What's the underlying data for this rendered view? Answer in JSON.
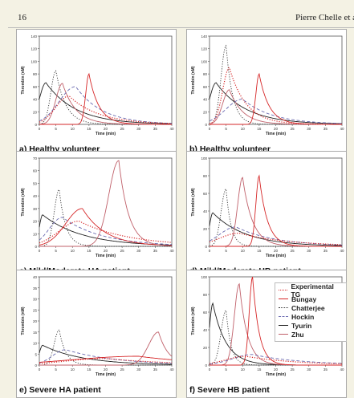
{
  "page": {
    "number": "16",
    "running_head": "Pierre Chelle et al"
  },
  "legend": [
    {
      "label": "Experimental TG",
      "color": "#d62728",
      "style": "dotted"
    },
    {
      "label": "Bungay",
      "color": "#d62728",
      "style": "solid"
    },
    {
      "label": "Chatterjee",
      "color": "#333333",
      "style": "dotted"
    },
    {
      "label": "Hockin",
      "color": "#6a6ab0",
      "style": "dashed"
    },
    {
      "label": "Tyurin",
      "color": "#222222",
      "style": "solid"
    },
    {
      "label": "Zhu",
      "color": "#c0606a",
      "style": "solid"
    }
  ],
  "chart_data": [
    {
      "panel": "a",
      "type": "line",
      "caption": "a) Healthy volunteer",
      "xlabel": "Time (min)",
      "ylabel": "Thrombin (nM)",
      "xlim": [
        0,
        40
      ],
      "ylim": [
        0,
        140
      ],
      "xticks": [
        0,
        5,
        10,
        15,
        20,
        25,
        30,
        35,
        40
      ],
      "yticks": [
        0,
        20,
        40,
        60,
        80,
        100,
        120,
        140
      ],
      "series": [
        {
          "name": "Tyurin",
          "peak_time": 2,
          "peak": 66,
          "rise": 2,
          "decay": 9
        },
        {
          "name": "Chatterjee",
          "peak_time": 5,
          "peak": 85,
          "rise": 1.5,
          "decay": 3
        },
        {
          "name": "Zhu",
          "peak_time": 7,
          "peak": 65,
          "rise": 2,
          "decay": 4
        },
        {
          "name": "Hockin",
          "peak_time": 11,
          "peak": 60,
          "rise": 5,
          "decay": 8
        },
        {
          "name": "Bungay",
          "peak_time": 15,
          "peak": 80,
          "rise": 1,
          "decay": 3
        },
        {
          "name": "Experimental TG",
          "peak_time": 9,
          "peak": 45,
          "rise": 4,
          "decay": 9
        }
      ]
    },
    {
      "panel": "b",
      "type": "line",
      "caption": "b) Healthy volunteer",
      "xlabel": "Time (min)",
      "ylabel": "Thrombin (nM)",
      "xlim": [
        0,
        40
      ],
      "ylim": [
        0,
        140
      ],
      "xticks": [
        0,
        5,
        10,
        15,
        20,
        25,
        30,
        35,
        40
      ],
      "yticks": [
        0,
        20,
        40,
        60,
        80,
        100,
        120,
        140
      ],
      "series": [
        {
          "name": "Tyurin",
          "peak_time": 2,
          "peak": 66,
          "rise": 2,
          "decay": 9
        },
        {
          "name": "Chatterjee",
          "peak_time": 5,
          "peak": 125,
          "rise": 1.5,
          "decay": 2
        },
        {
          "name": "Zhu",
          "peak_time": 6,
          "peak": 55,
          "rise": 2,
          "decay": 4
        },
        {
          "name": "Hockin",
          "peak_time": 10,
          "peak": 40,
          "rise": 5,
          "decay": 9
        },
        {
          "name": "Bungay",
          "peak_time": 15,
          "peak": 80,
          "rise": 1,
          "decay": 3
        },
        {
          "name": "Experimental TG",
          "peak_time": 6,
          "peak": 90,
          "rise": 2,
          "decay": 5
        }
      ]
    },
    {
      "panel": "c",
      "type": "line",
      "caption": "c) Mild/Moderate HA patient",
      "xlabel": "Time (min)",
      "ylabel": "Thrombin (nM)",
      "xlim": [
        0,
        40
      ],
      "ylim": [
        0,
        70
      ],
      "xticks": [
        0,
        5,
        10,
        15,
        20,
        25,
        30,
        35,
        40
      ],
      "yticks": [
        0,
        10,
        20,
        30,
        40,
        50,
        60,
        70
      ],
      "series": [
        {
          "name": "Tyurin",
          "peak_time": 1,
          "peak": 25,
          "rise": 1,
          "decay": 12
        },
        {
          "name": "Chatterjee",
          "peak_time": 6,
          "peak": 45,
          "rise": 1.5,
          "decay": 2
        },
        {
          "name": "Hockin",
          "peak_time": 7,
          "peak": 23,
          "rise": 4,
          "decay": 12
        },
        {
          "name": "Bungay",
          "peak_time": 13,
          "peak": 30,
          "rise": 5,
          "decay": 7
        },
        {
          "name": "Zhu",
          "peak_time": 24,
          "peak": 68,
          "rise": 3,
          "decay": 3
        },
        {
          "name": "Experimental TG",
          "peak_time": 12,
          "peak": 20,
          "rise": 6,
          "decay": 15
        }
      ]
    },
    {
      "panel": "d",
      "type": "line",
      "caption": "d) Mild/Moderate HB patient",
      "xlabel": "Time (min)",
      "ylabel": "Thrombin (nM)",
      "xlim": [
        0,
        40
      ],
      "ylim": [
        0,
        100
      ],
      "xticks": [
        0,
        5,
        10,
        15,
        20,
        25,
        30,
        35,
        40
      ],
      "yticks": [
        0,
        20,
        40,
        60,
        80,
        100
      ],
      "series": [
        {
          "name": "Tyurin",
          "peak_time": 1,
          "peak": 38,
          "rise": 1,
          "decay": 10
        },
        {
          "name": "Chatterjee",
          "peak_time": 5,
          "peak": 65,
          "rise": 1.5,
          "decay": 1.5
        },
        {
          "name": "Hockin",
          "peak_time": 8,
          "peak": 22,
          "rise": 5,
          "decay": 12
        },
        {
          "name": "Zhu",
          "peak_time": 10,
          "peak": 78,
          "rise": 1.5,
          "decay": 3
        },
        {
          "name": "Bungay",
          "peak_time": 15,
          "peak": 80,
          "rise": 1,
          "decay": 2.5
        },
        {
          "name": "Experimental TG",
          "peak_time": 9,
          "peak": 15,
          "rise": 6,
          "decay": 15
        }
      ]
    },
    {
      "panel": "e",
      "type": "line",
      "caption": "e) Severe HA patient",
      "xlabel": "Time (min)",
      "ylabel": "Thrombin (nM)",
      "xlim": [
        0,
        40
      ],
      "ylim": [
        0,
        40
      ],
      "xticks": [
        0,
        5,
        10,
        15,
        20,
        25,
        30,
        35,
        40
      ],
      "yticks": [
        0,
        5,
        10,
        15,
        20,
        25,
        30,
        35,
        40
      ],
      "series": [
        {
          "name": "Tyurin",
          "peak_time": 1,
          "peak": 9,
          "rise": 1,
          "decay": 12
        },
        {
          "name": "Chatterjee",
          "peak_time": 6,
          "peak": 16,
          "rise": 1.5,
          "decay": 2
        },
        {
          "name": "Hockin",
          "peak_time": 8,
          "peak": 7,
          "rise": 4,
          "decay": 15
        },
        {
          "name": "Zhu",
          "peak_time": 36,
          "peak": 15,
          "rise": 3,
          "decay": 3
        },
        {
          "name": "Bungay",
          "peak_time": 30,
          "peak": 4,
          "rise": 20,
          "decay": 20
        },
        {
          "name": "Experimental TG",
          "peak_time": 20,
          "peak": 3,
          "rise": 12,
          "decay": 20
        }
      ]
    },
    {
      "panel": "f",
      "type": "line",
      "caption": "f) Severe HB patient",
      "xlabel": "Time (min)",
      "ylabel": "Thrombin (nM)",
      "xlim": [
        0,
        40
      ],
      "ylim": [
        0,
        100
      ],
      "xticks": [
        0,
        5,
        10,
        15,
        20,
        25,
        30,
        35,
        40
      ],
      "yticks": [
        0,
        20,
        40,
        60,
        80,
        100
      ],
      "series": [
        {
          "name": "Tyurin",
          "peak_time": 1,
          "peak": 70,
          "rise": 1,
          "decay": 4
        },
        {
          "name": "Chatterjee",
          "peak_time": 5,
          "peak": 62,
          "rise": 1.5,
          "decay": 1.5
        },
        {
          "name": "Zhu",
          "peak_time": 9,
          "peak": 92,
          "rise": 1.5,
          "decay": 2.5
        },
        {
          "name": "Bungay",
          "peak_time": 13,
          "peak": 100,
          "rise": 1,
          "decay": 2
        },
        {
          "name": "Hockin",
          "peak_time": 13,
          "peak": 12,
          "rise": 6,
          "decay": 15
        },
        {
          "name": "Experimental TG",
          "peak_time": 11,
          "peak": 10,
          "rise": 6,
          "decay": 15
        }
      ]
    }
  ]
}
